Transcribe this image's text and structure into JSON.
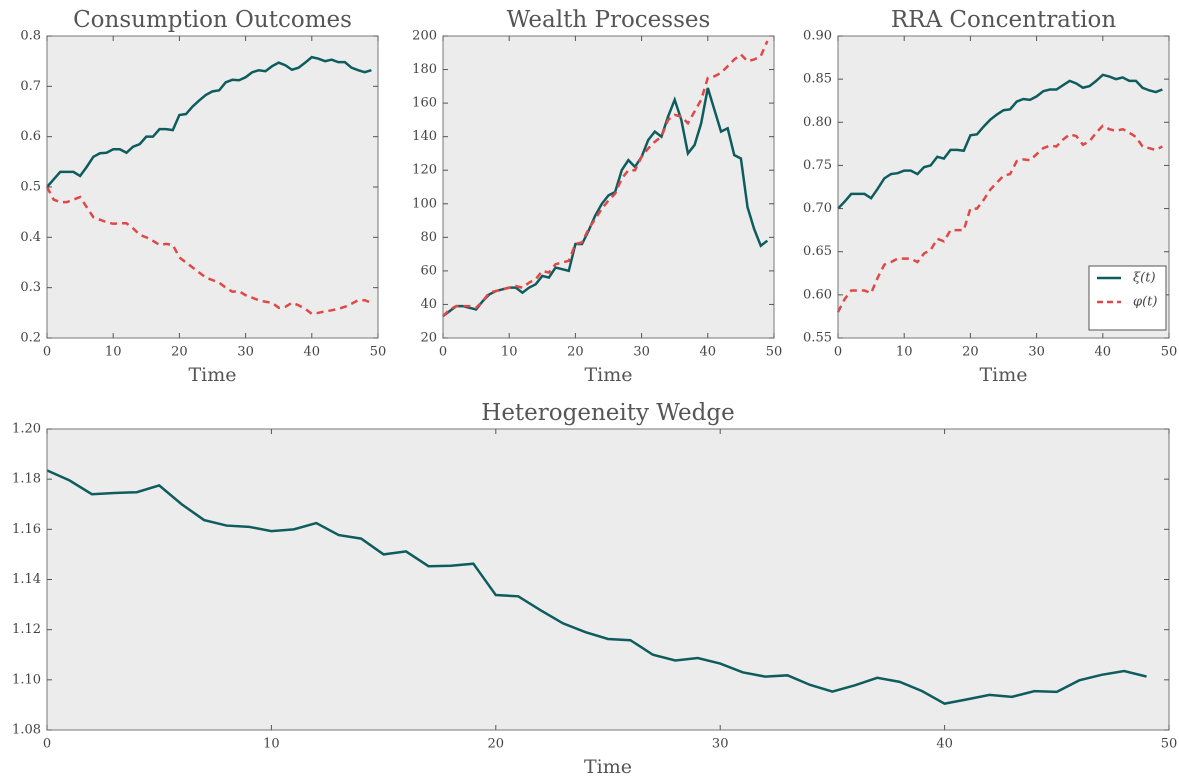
{
  "chart_data": [
    {
      "type": "line",
      "title": "Consumption Outcomes",
      "xlabel": "Time",
      "x": [
        0,
        1,
        2,
        3,
        4,
        5,
        6,
        7,
        8,
        9,
        10,
        11,
        12,
        13,
        14,
        15,
        16,
        17,
        18,
        19,
        20,
        21,
        22,
        23,
        24,
        25,
        26,
        27,
        28,
        29,
        30,
        31,
        32,
        33,
        34,
        35,
        36,
        37,
        38,
        39,
        40,
        41,
        42,
        43,
        44,
        45,
        46,
        47,
        48,
        49
      ],
      "series": [
        {
          "name": "ξ(t)",
          "color": "#0f5c5e",
          "linestyle": "solid",
          "values": [
            0.5,
            0.515,
            0.53,
            0.53,
            0.53,
            0.522,
            0.54,
            0.56,
            0.567,
            0.568,
            0.575,
            0.575,
            0.568,
            0.58,
            0.585,
            0.6,
            0.6,
            0.615,
            0.615,
            0.613,
            0.643,
            0.645,
            0.66,
            0.672,
            0.683,
            0.69,
            0.692,
            0.708,
            0.713,
            0.712,
            0.718,
            0.728,
            0.732,
            0.73,
            0.74,
            0.747,
            0.742,
            0.733,
            0.737,
            0.747,
            0.758,
            0.755,
            0.75,
            0.753,
            0.748,
            0.748,
            0.737,
            0.732,
            0.728,
            0.732
          ]
        },
        {
          "name": "φ(t)",
          "color": "#e04848",
          "linestyle": "dashed",
          "values": [
            0.5,
            0.475,
            0.47,
            0.47,
            0.475,
            0.48,
            0.46,
            0.44,
            0.435,
            0.43,
            0.427,
            0.428,
            0.428,
            0.418,
            0.405,
            0.4,
            0.393,
            0.385,
            0.387,
            0.385,
            0.36,
            0.35,
            0.34,
            0.33,
            0.32,
            0.315,
            0.31,
            0.3,
            0.292,
            0.293,
            0.285,
            0.28,
            0.275,
            0.272,
            0.27,
            0.26,
            0.262,
            0.27,
            0.265,
            0.258,
            0.248,
            0.25,
            0.253,
            0.255,
            0.258,
            0.262,
            0.268,
            0.275,
            0.275,
            0.27
          ]
        }
      ],
      "xlim": [
        0,
        50
      ],
      "xticks": [
        0,
        10,
        20,
        30,
        40,
        50
      ],
      "ylim": [
        0.2,
        0.8
      ],
      "yticks": [
        0.2,
        0.3,
        0.4,
        0.5,
        0.6,
        0.7,
        0.8
      ]
    },
    {
      "type": "line",
      "title": "Wealth Processes",
      "xlabel": "Time",
      "x": [
        0,
        1,
        2,
        3,
        4,
        5,
        6,
        7,
        8,
        9,
        10,
        11,
        12,
        13,
        14,
        15,
        16,
        17,
        18,
        19,
        20,
        21,
        22,
        23,
        24,
        25,
        26,
        27,
        28,
        29,
        30,
        31,
        32,
        33,
        34,
        35,
        36,
        37,
        38,
        39,
        40,
        41,
        42,
        43,
        44,
        45,
        46,
        47,
        48,
        49
      ],
      "series": [
        {
          "name": "ξ(t)",
          "color": "#0f5c5e",
          "linestyle": "solid",
          "values": [
            33,
            36,
            39,
            39,
            38,
            37,
            42,
            46,
            48,
            49,
            50,
            50,
            47,
            50,
            52,
            57,
            56,
            62,
            61,
            60,
            76,
            76,
            84,
            93,
            100,
            105,
            107,
            120,
            126,
            122,
            128,
            138,
            143,
            140,
            152,
            162,
            150,
            130,
            135,
            148,
            169,
            156,
            143,
            145,
            129,
            127,
            98,
            85,
            75,
            78
          ]
        },
        {
          "name": "φ(t)",
          "color": "#e04848",
          "linestyle": "dashed",
          "values": [
            33,
            37,
            39,
            39,
            39,
            38,
            42,
            47,
            48,
            49,
            50,
            51,
            50,
            53,
            55,
            60,
            59,
            64,
            65,
            66,
            76,
            77,
            85,
            91,
            97,
            102,
            106,
            115,
            120,
            120,
            128,
            133,
            137,
            140,
            150,
            153,
            152,
            148,
            155,
            162,
            175,
            176,
            178,
            182,
            186,
            189,
            185,
            186,
            188,
            197
          ]
        }
      ],
      "xlim": [
        0,
        50
      ],
      "xticks": [
        0,
        10,
        20,
        30,
        40,
        50
      ],
      "ylim": [
        20,
        200
      ],
      "yticks": [
        20,
        40,
        60,
        80,
        100,
        120,
        140,
        160,
        180,
        200
      ]
    },
    {
      "type": "line",
      "title": "RRA Concentration",
      "xlabel": "Time",
      "legend": "lower right",
      "x": [
        0,
        1,
        2,
        3,
        4,
        5,
        6,
        7,
        8,
        9,
        10,
        11,
        12,
        13,
        14,
        15,
        16,
        17,
        18,
        19,
        20,
        21,
        22,
        23,
        24,
        25,
        26,
        27,
        28,
        29,
        30,
        31,
        32,
        33,
        34,
        35,
        36,
        37,
        38,
        39,
        40,
        41,
        42,
        43,
        44,
        45,
        46,
        47,
        48,
        49
      ],
      "series": [
        {
          "name": "ξ(t)",
          "color": "#0f5c5e",
          "linestyle": "solid",
          "values": [
            0.7,
            0.708,
            0.717,
            0.717,
            0.717,
            0.712,
            0.723,
            0.735,
            0.74,
            0.741,
            0.744,
            0.744,
            0.74,
            0.748,
            0.75,
            0.76,
            0.758,
            0.768,
            0.768,
            0.767,
            0.785,
            0.786,
            0.795,
            0.803,
            0.809,
            0.814,
            0.815,
            0.824,
            0.827,
            0.826,
            0.83,
            0.836,
            0.838,
            0.838,
            0.843,
            0.848,
            0.845,
            0.84,
            0.842,
            0.848,
            0.855,
            0.853,
            0.85,
            0.852,
            0.848,
            0.848,
            0.84,
            0.837,
            0.835,
            0.838
          ]
        },
        {
          "name": "φ(t)",
          "color": "#e04848",
          "linestyle": "dashed",
          "values": [
            0.58,
            0.595,
            0.605,
            0.605,
            0.605,
            0.602,
            0.62,
            0.635,
            0.638,
            0.642,
            0.642,
            0.642,
            0.638,
            0.648,
            0.652,
            0.665,
            0.662,
            0.675,
            0.675,
            0.675,
            0.7,
            0.7,
            0.71,
            0.722,
            0.73,
            0.738,
            0.74,
            0.755,
            0.757,
            0.756,
            0.763,
            0.77,
            0.773,
            0.772,
            0.78,
            0.786,
            0.784,
            0.774,
            0.778,
            0.788,
            0.796,
            0.792,
            0.79,
            0.792,
            0.788,
            0.783,
            0.772,
            0.77,
            0.768,
            0.772
          ]
        }
      ],
      "xlim": [
        0,
        50
      ],
      "xticks": [
        0,
        10,
        20,
        30,
        40,
        50
      ],
      "ylim": [
        0.55,
        0.9
      ],
      "yticks": [
        0.55,
        {
          "value": 0.6,
          "label": "0.60"
        },
        0.65,
        {
          "value": 0.7,
          "label": "0.70"
        },
        0.75,
        {
          "value": 0.8,
          "label": "0.80"
        },
        0.85,
        {
          "value": 0.9,
          "label": "0.90"
        }
      ]
    },
    {
      "type": "line",
      "title": "Heterogeneity Wedge",
      "xlabel": "Time",
      "x": [
        0,
        1,
        2,
        3,
        4,
        5,
        6,
        7,
        8,
        9,
        10,
        11,
        12,
        13,
        14,
        15,
        16,
        17,
        18,
        19,
        20,
        21,
        22,
        23,
        24,
        25,
        26,
        27,
        28,
        29,
        30,
        31,
        32,
        33,
        34,
        35,
        36,
        37,
        38,
        39,
        40,
        41,
        42,
        43,
        44,
        45,
        46,
        47,
        48,
        49
      ],
      "series": [
        {
          "color": "#0f5c5e",
          "linestyle": "solid",
          "values": [
            1.1835,
            1.1795,
            1.174,
            1.1745,
            1.1748,
            1.1775,
            1.17,
            1.1637,
            1.1615,
            1.161,
            1.1593,
            1.16,
            1.1625,
            1.1577,
            1.1563,
            1.15,
            1.1512,
            1.1453,
            1.1455,
            1.1463,
            1.1338,
            1.1333,
            1.1277,
            1.1225,
            1.119,
            1.1163,
            1.1158,
            1.11,
            1.1077,
            1.1087,
            1.1065,
            1.103,
            1.1013,
            1.1018,
            1.098,
            1.0953,
            1.0978,
            1.1008,
            1.0992,
            1.0955,
            1.0905,
            1.0922,
            1.094,
            1.0932,
            1.0955,
            1.0952,
            1.0998,
            1.102,
            1.1035,
            1.1013
          ]
        }
      ],
      "xlim": [
        0,
        50
      ],
      "xticks": [
        0,
        10,
        20,
        30,
        40,
        50
      ],
      "ylim": [
        1.08,
        1.2
      ],
      "yticks": [
        1.08,
        {
          "value": 1.1,
          "label": "1.10"
        },
        1.12,
        1.14,
        1.16,
        1.18,
        {
          "value": 1.2,
          "label": "1.20"
        }
      ]
    }
  ]
}
